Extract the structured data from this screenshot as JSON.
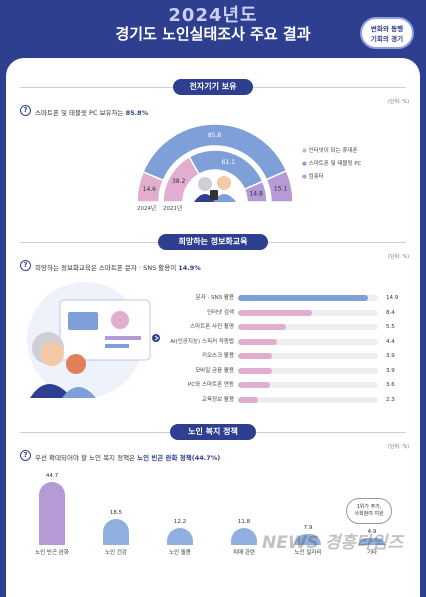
{
  "header": {
    "year": "2024년도",
    "title": "경기도 노인실태조사 주요 결과",
    "badge": [
      "변화와 동행",
      "기회의 경기"
    ]
  },
  "sections": {
    "devices": {
      "title": "전자기기 보유",
      "unit": "(단위: %)",
      "headline_prefix": "스마트폰 및 태블릿 PC 보유자는 ",
      "headline_value": "85.8%",
      "legend": [
        "인터넷이 되는 휴대폰",
        "스마트폰 및 태블릿 PC",
        "컴퓨터"
      ],
      "year_labels": [
        "2024년",
        "2021년"
      ],
      "colors": {
        "phone": "#e2aed0",
        "smartphone": "#7f9fd8",
        "computer": "#b59ad6"
      }
    },
    "education": {
      "title": "희망하는 정보화교육",
      "unit": "(단위: %)",
      "headline_prefix": "희망하는 정보화교육은 스마트폰 문자 · SNS 활용이 ",
      "headline_value": "14.9%"
    },
    "welfare": {
      "title": "노인 복지 정책",
      "unit": "(단위: %)",
      "headline_prefix": "우선 확대되어야 할 노인 복지 정책은 ",
      "headline_value": "노인 빈곤 완화 정책(44.7%)",
      "bubble": [
        "1위가 주거,",
        "사회참여 지원"
      ]
    }
  },
  "chart_data": [
    {
      "type": "donut",
      "title": "전자기기 보유",
      "series": [
        {
          "name": "2024년",
          "values": [
            14.6,
            85.8,
            15.1
          ]
        },
        {
          "name": "2021년",
          "values": [
            38.2,
            61.1,
            14.8
          ]
        }
      ],
      "categories": [
        "인터넷이 되는 휴대폰",
        "스마트폰 및 태블릿 PC",
        "컴퓨터"
      ]
    },
    {
      "type": "bar",
      "title": "희망하는 정보화교육",
      "categories": [
        "문자 · SNS 활용",
        "인터넷 검색",
        "스마트폰 사진 촬영",
        "AI(인공지능) 스피커 작동법",
        "키오스크 활용",
        "모바일 금융 활용",
        "PC와 스마트폰 연동",
        "교육정보 활용"
      ],
      "values": [
        14.9,
        8.4,
        5.5,
        4.4,
        3.9,
        3.9,
        3.6,
        2.3
      ],
      "xlim": [
        0,
        16
      ]
    },
    {
      "type": "bar",
      "title": "노인 복지 정책",
      "categories": [
        "노인 빈곤 완화",
        "노인 건강",
        "노인 돌봄",
        "치매 관련",
        "노인 일자리",
        "기타"
      ],
      "values": [
        44.7,
        18.5,
        12.2,
        11.8,
        7.9,
        4.9
      ],
      "ylim": [
        0,
        50
      ]
    }
  ],
  "watermark": "NEWS 경흥타임즈"
}
